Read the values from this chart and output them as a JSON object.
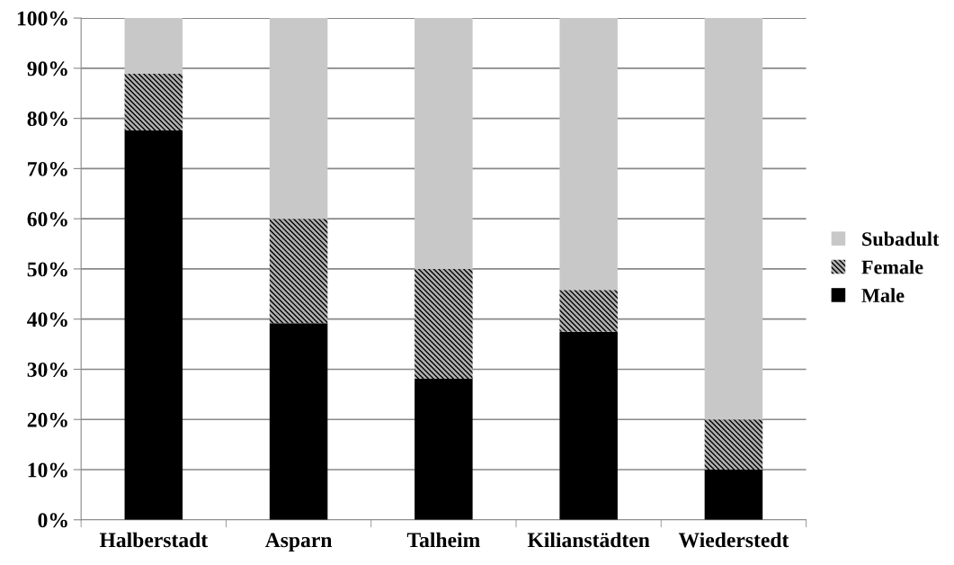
{
  "chart_data": {
    "type": "bar",
    "stacked": true,
    "categories": [
      "Halberstadt",
      "Asparn",
      "Talheim",
      "Kilianstädten",
      "Wiederstedt"
    ],
    "series": [
      {
        "name": "Male",
        "color": "#000000",
        "values": [
          77.6,
          39.2,
          28.1,
          37.5,
          10.0
        ]
      },
      {
        "name": "Female",
        "color": "#b0b0b0",
        "values": [
          11.3,
          20.8,
          21.9,
          8.3,
          10.0
        ]
      },
      {
        "name": "Subadult",
        "color": "#c8c8c8",
        "values": [
          11.1,
          40.0,
          50.0,
          54.2,
          80.0
        ]
      }
    ],
    "ylim": [
      0,
      100
    ],
    "yticks": [
      {
        "value": 0,
        "label": "0%"
      },
      {
        "value": 10,
        "label": "10%"
      },
      {
        "value": 20,
        "label": "20%"
      },
      {
        "value": 30,
        "label": "30%"
      },
      {
        "value": 40,
        "label": "40%"
      },
      {
        "value": 50,
        "label": "50%"
      },
      {
        "value": 60,
        "label": "60%"
      },
      {
        "value": 70,
        "label": "70%"
      },
      {
        "value": 80,
        "label": "80%"
      },
      {
        "value": 90,
        "label": "90%"
      },
      {
        "value": 100,
        "label": "100%"
      }
    ],
    "grid": "y",
    "legend": "right"
  }
}
